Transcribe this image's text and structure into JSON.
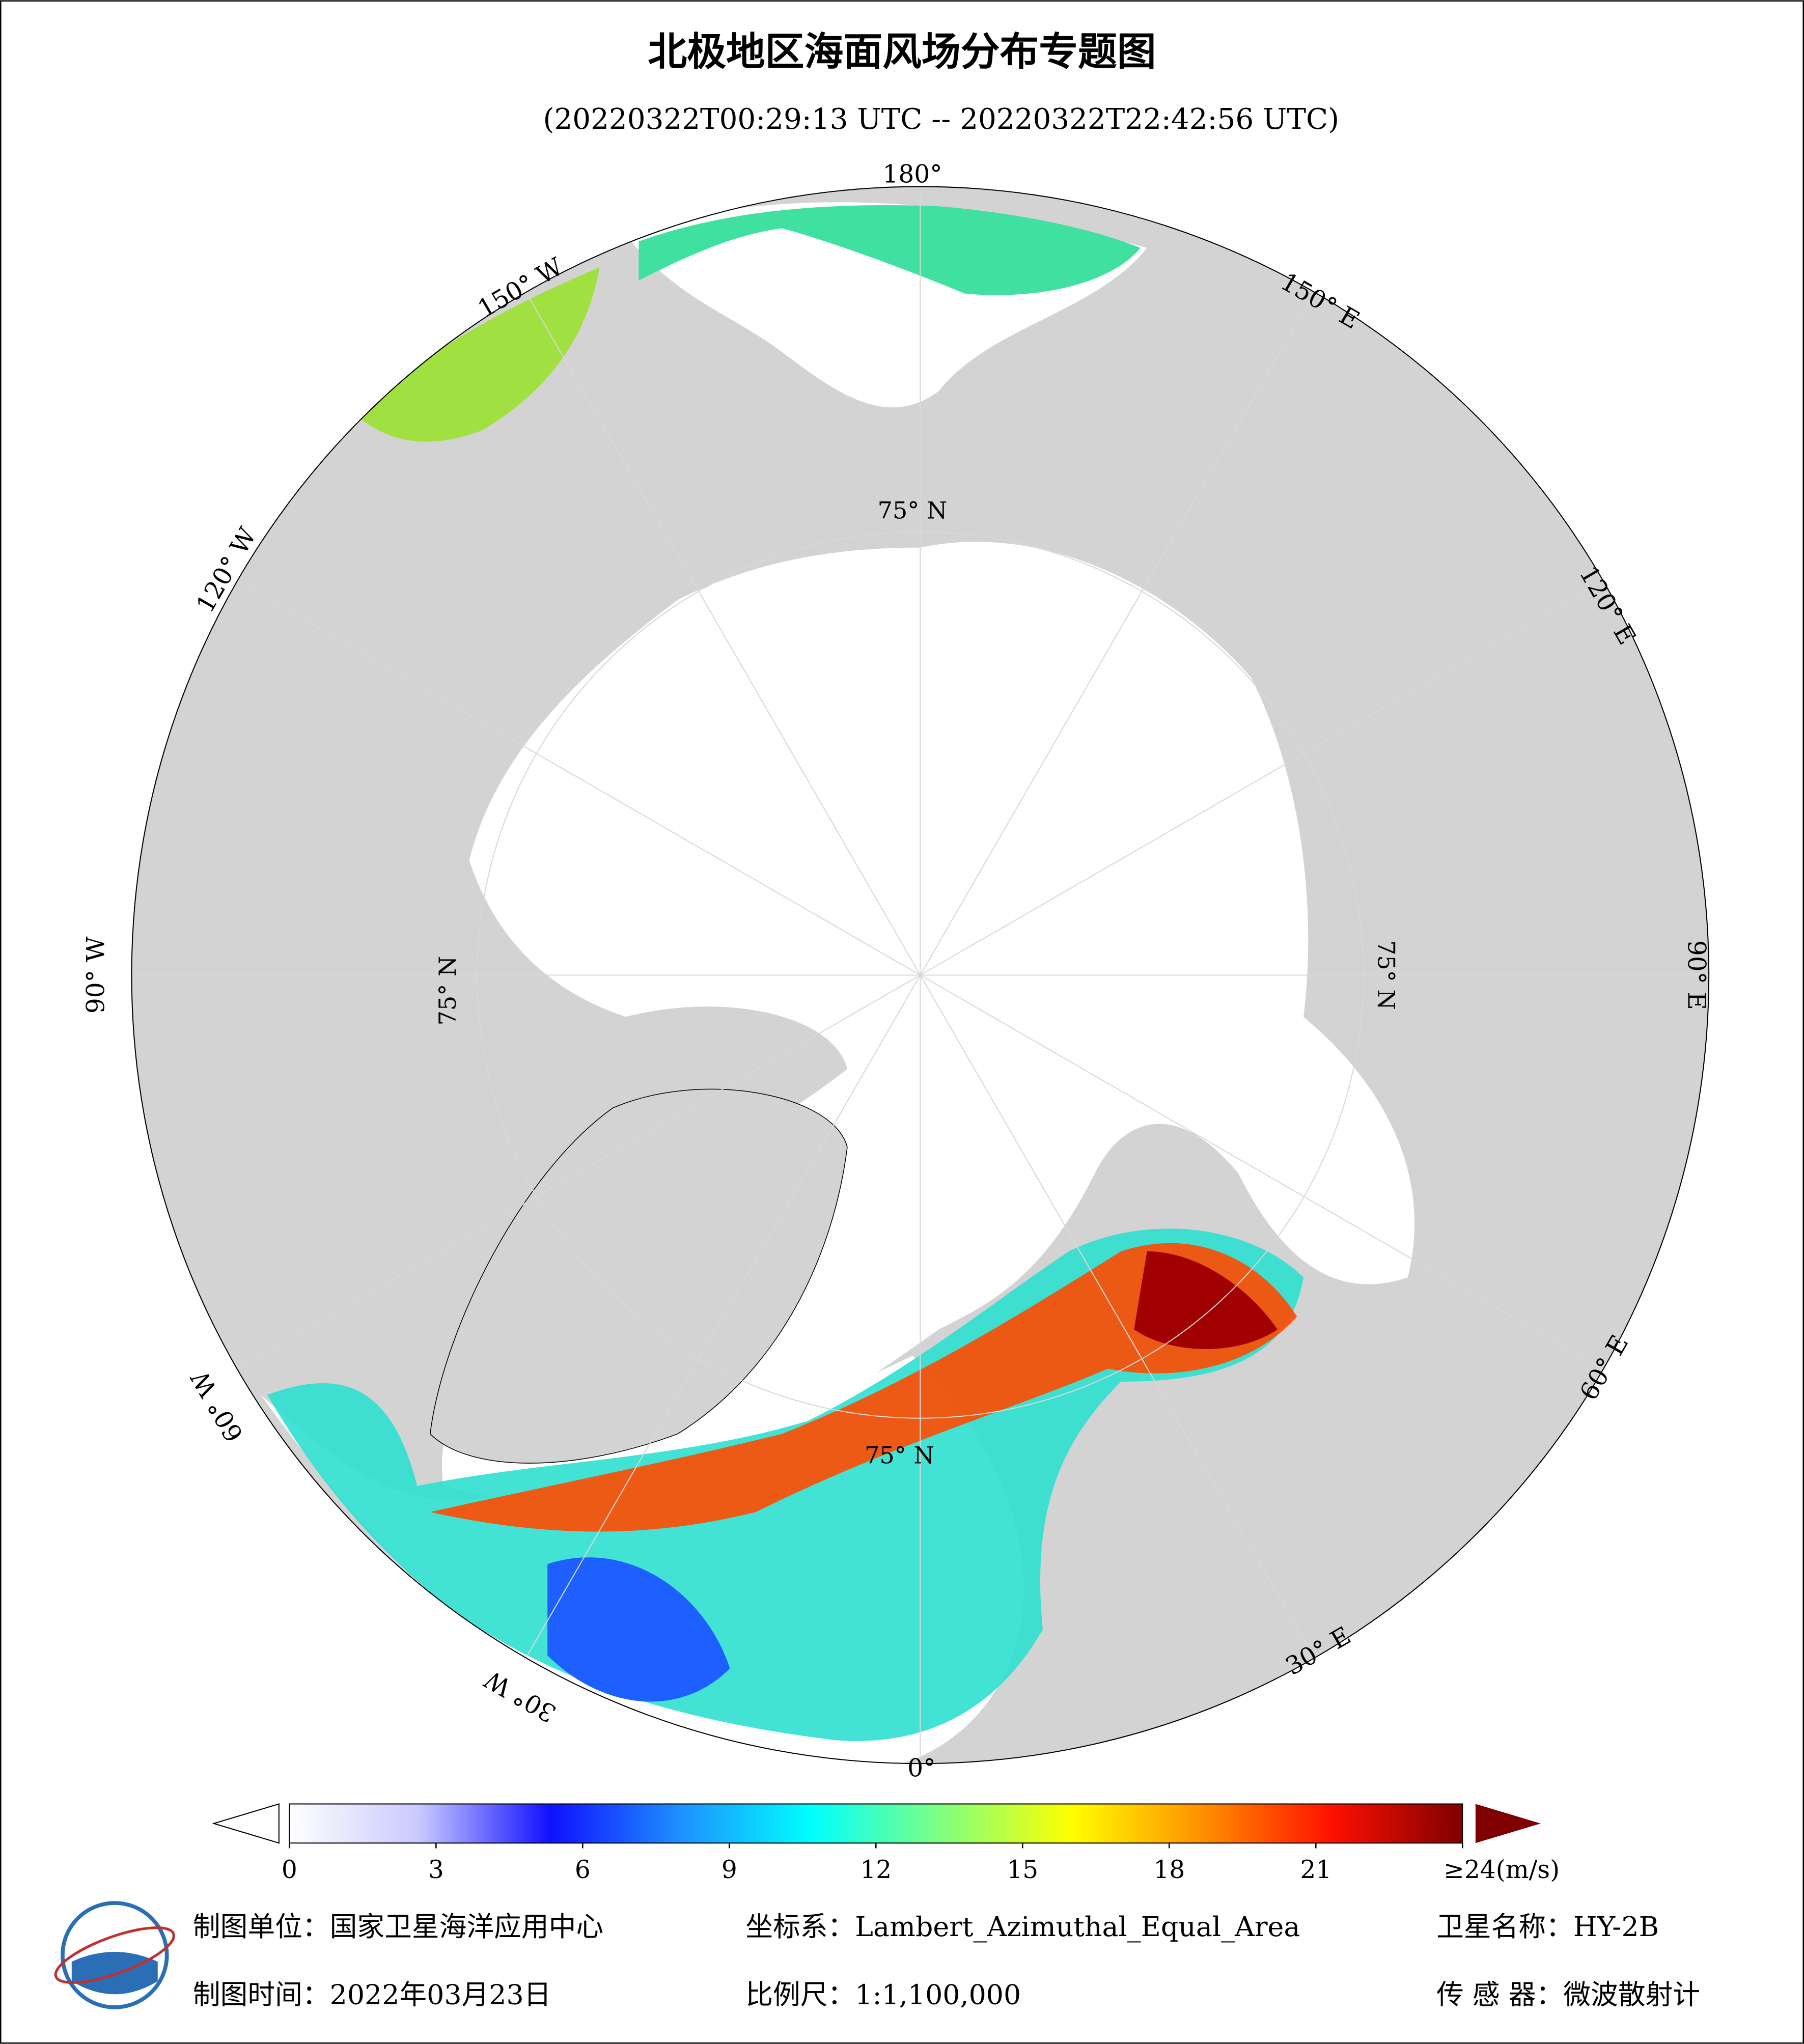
{
  "header": {
    "title": "北极地区海面风场分布专题图",
    "subtitle": "(20220322T00:29:13 UTC -- 20220322T22:42:56 UTC)"
  },
  "map": {
    "lon_labels": [
      "180°",
      "150° W",
      "120° W",
      "90° W",
      "60° W",
      "30° W",
      "0°",
      "30° E",
      "60° E",
      "90° E",
      "120° E",
      "150° E"
    ],
    "lat_labels": [
      "75° N",
      "75° N",
      "75° N",
      "75° N"
    ]
  },
  "colorbar": {
    "lim": [
      0,
      24
    ],
    "ticks": [
      0,
      3,
      6,
      9,
      12,
      15,
      18,
      21,
      {
        "value": 24,
        "label": "≥24(m/s)"
      }
    ],
    "colors": [
      "#ffffff",
      "#c8c8ff",
      "#1010ff",
      "#1e90ff",
      "#00ffff",
      "#7fff7f",
      "#ffff00",
      "#ff9000",
      "#ff1000",
      "#7f0000"
    ]
  },
  "footer": {
    "unit": "制图单位：国家卫星海洋应用中心",
    "crs": "坐标系：Lambert_Azimuthal_Equal_Area",
    "satellite": "卫星名称：HY-2B",
    "date": "制图时间：2022年03月23日",
    "scale": "比例尺：1:1,100,000",
    "sensor": "传 感 器：微波散射计"
  }
}
